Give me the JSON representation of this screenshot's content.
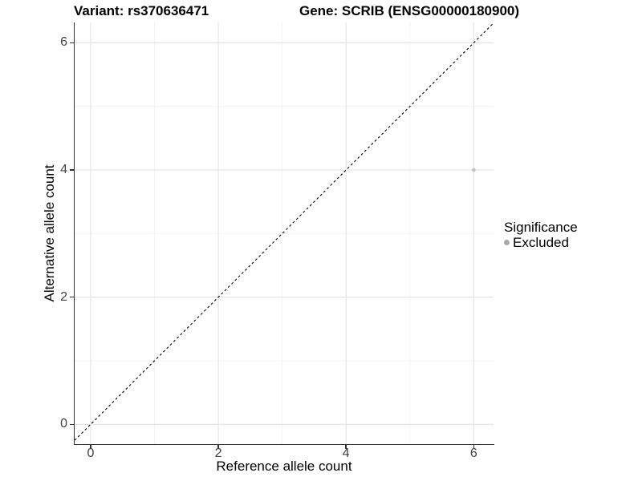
{
  "chart_data": {
    "type": "scatter",
    "title_left": "Variant: rs370636471",
    "title_right": "Gene: SCRIB (ENSG00000180900)",
    "xlabel": "Reference allele count",
    "ylabel": "Alternative allele count",
    "xlim": [
      -0.25,
      6.31
    ],
    "ylim": [
      -0.31,
      6.32
    ],
    "x_ticks": [
      0,
      2,
      4,
      6
    ],
    "y_ticks": [
      0,
      2,
      4,
      6
    ],
    "x_minor_ticks": [
      1,
      3,
      5
    ],
    "y_minor_ticks": [
      1,
      3,
      5
    ],
    "grid": "major and minor gridlines on white background",
    "series": [
      {
        "name": "Excluded",
        "color": "#c3c3c3",
        "point_radius": 2.4,
        "points": [
          {
            "x": 6,
            "y": 4
          }
        ]
      }
    ],
    "reference_line": {
      "kind": "identity y=x",
      "style": "dashed",
      "color": "#000000"
    },
    "legend": {
      "title": "Significance",
      "position": "right",
      "entries": [
        {
          "label": "Excluded",
          "color": "#a8a8a8"
        }
      ]
    },
    "colors": {
      "axis_line": "#333333",
      "tick_label": "#404040",
      "grid_major": "#e4e4e4",
      "grid_minor": "#f2f2f2",
      "background": "#ffffff"
    }
  }
}
